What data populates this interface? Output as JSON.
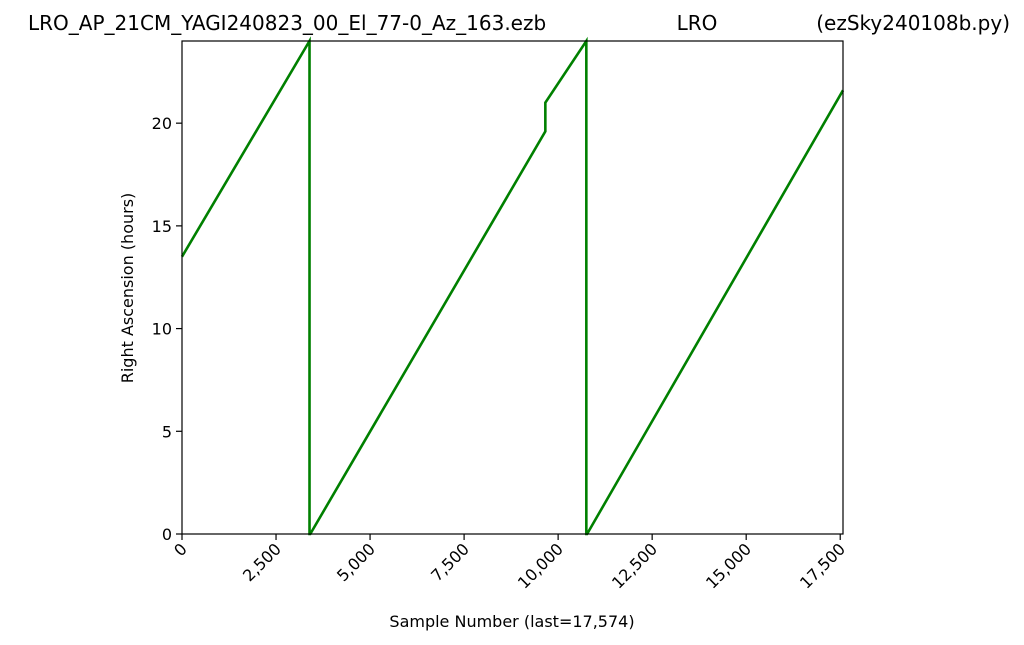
{
  "chart_data": {
    "type": "line",
    "title_left": "LRO_AP_21CM_YAGI240823_00_El_77-0_Az_163.ezb",
    "title_center": "LRO",
    "title_right": "(ezSky240108b.py)",
    "xlabel": "Sample Number (last=17,574)",
    "ylabel": "Right Ascension (hours)",
    "xlim": [
      0,
      17574
    ],
    "ylim": [
      0,
      24
    ],
    "x_ticks": [
      0,
      2500,
      5000,
      7500,
      10000,
      12500,
      15000,
      17500
    ],
    "x_tick_labels": [
      "0",
      "2,500",
      "5,000",
      "7,500",
      "10,000",
      "12,500",
      "15,000",
      "17,500"
    ],
    "y_ticks": [
      0,
      5,
      10,
      15,
      20
    ],
    "y_tick_labels": [
      "0",
      "5",
      "10",
      "15",
      "20"
    ],
    "grid": false,
    "color": "#008000",
    "series": [
      {
        "x": [
          0,
          3390,
          3390,
          3410,
          9660,
          9660,
          10750,
          10750,
          10770,
          17574
        ],
        "y": [
          13.5,
          24.0,
          0.0,
          0.0,
          19.6,
          21.0,
          24.0,
          0.0,
          0.0,
          21.6
        ]
      }
    ]
  }
}
